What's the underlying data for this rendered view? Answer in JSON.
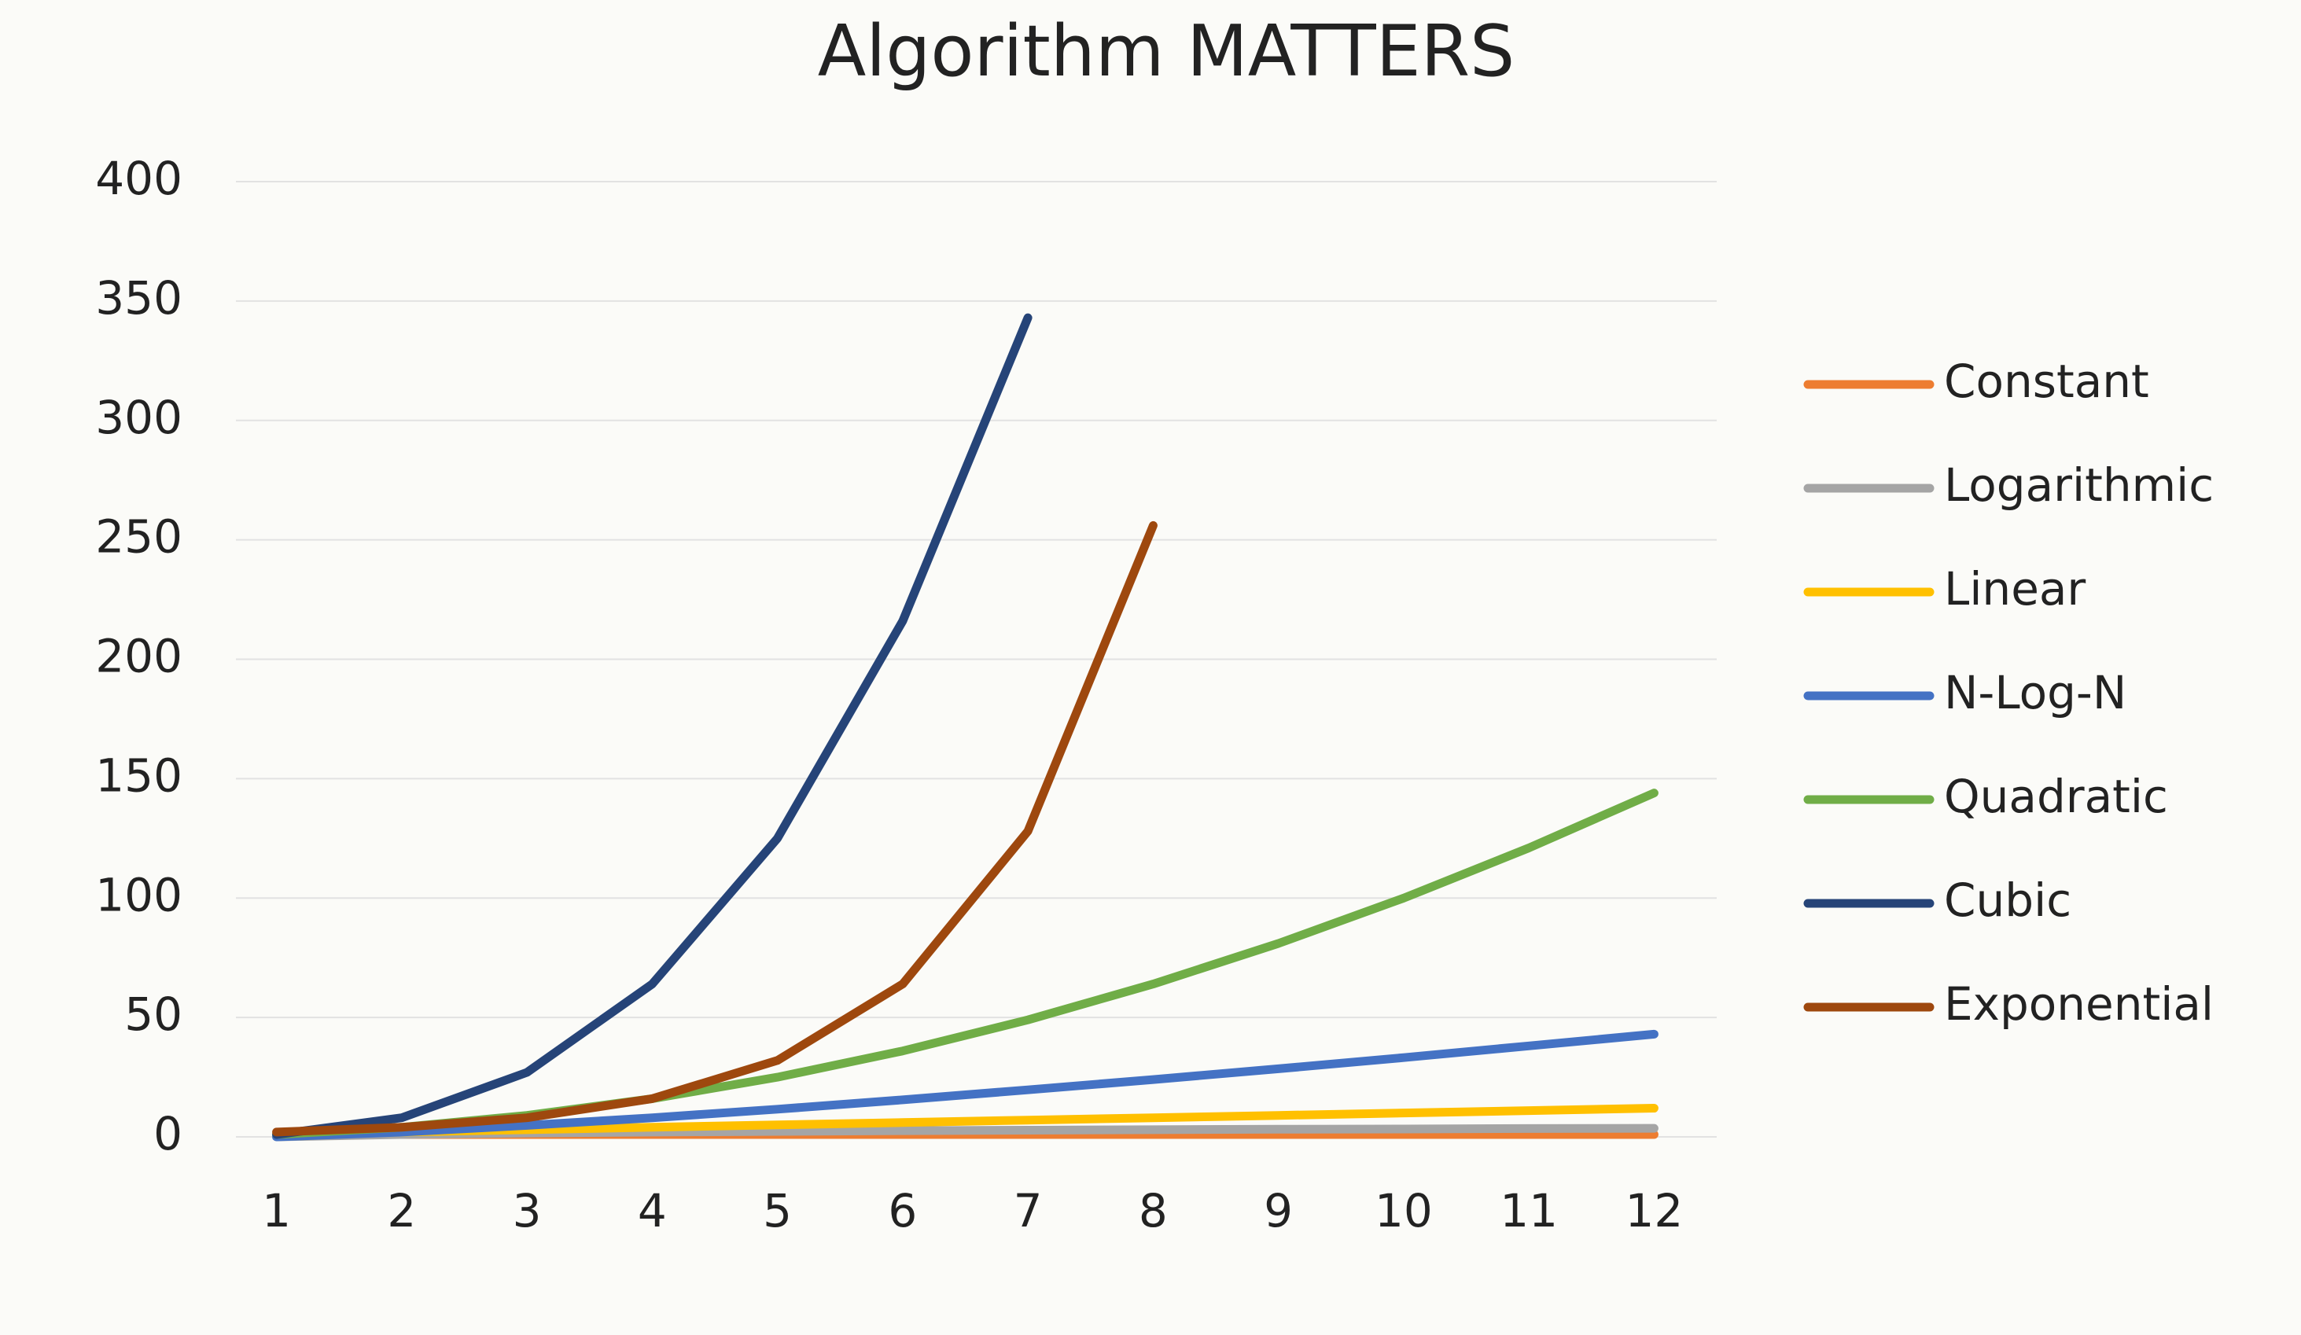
{
  "chart_data": {
    "type": "line",
    "title": "Algorithm MATTERS",
    "categories": [
      1,
      2,
      3,
      4,
      5,
      6,
      7,
      8,
      9,
      10,
      11,
      12
    ],
    "series": [
      {
        "name": "Constant",
        "color": "#ed7d31",
        "values": [
          1,
          1,
          1,
          1,
          1,
          1,
          1,
          1,
          1,
          1,
          1,
          1
        ]
      },
      {
        "name": "Logarithmic",
        "color": "#a5a5a5",
        "values": [
          0,
          1,
          1.6,
          2,
          2.3,
          2.6,
          2.8,
          3,
          3.2,
          3.3,
          3.5,
          3.6
        ]
      },
      {
        "name": "Linear",
        "color": "#ffc000",
        "values": [
          1,
          2,
          3,
          4,
          5,
          6,
          7,
          8,
          9,
          10,
          11,
          12
        ]
      },
      {
        "name": "N-Log-N",
        "color": "#4472c4",
        "values": [
          0,
          2,
          4.8,
          8,
          11.6,
          15.5,
          19.7,
          24,
          28.5,
          33.2,
          38.1,
          43
        ]
      },
      {
        "name": "Quadratic",
        "color": "#70ad47",
        "values": [
          1,
          4,
          9,
          16,
          25,
          36,
          49,
          64,
          81,
          100,
          121,
          144
        ]
      },
      {
        "name": "Cubic",
        "color": "#264478",
        "values": [
          1,
          8,
          27,
          64,
          125,
          216,
          343,
          null,
          null,
          null,
          null,
          null
        ]
      },
      {
        "name": "Exponential",
        "color": "#9e480e",
        "values": [
          2,
          4,
          8,
          16,
          32,
          64,
          128,
          256,
          null,
          null,
          null,
          null
        ]
      }
    ],
    "ylim": [
      0,
      400
    ],
    "yticks": [
      0,
      50,
      100,
      150,
      200,
      250,
      300,
      350,
      400
    ],
    "grid": true,
    "legend": "right"
  }
}
